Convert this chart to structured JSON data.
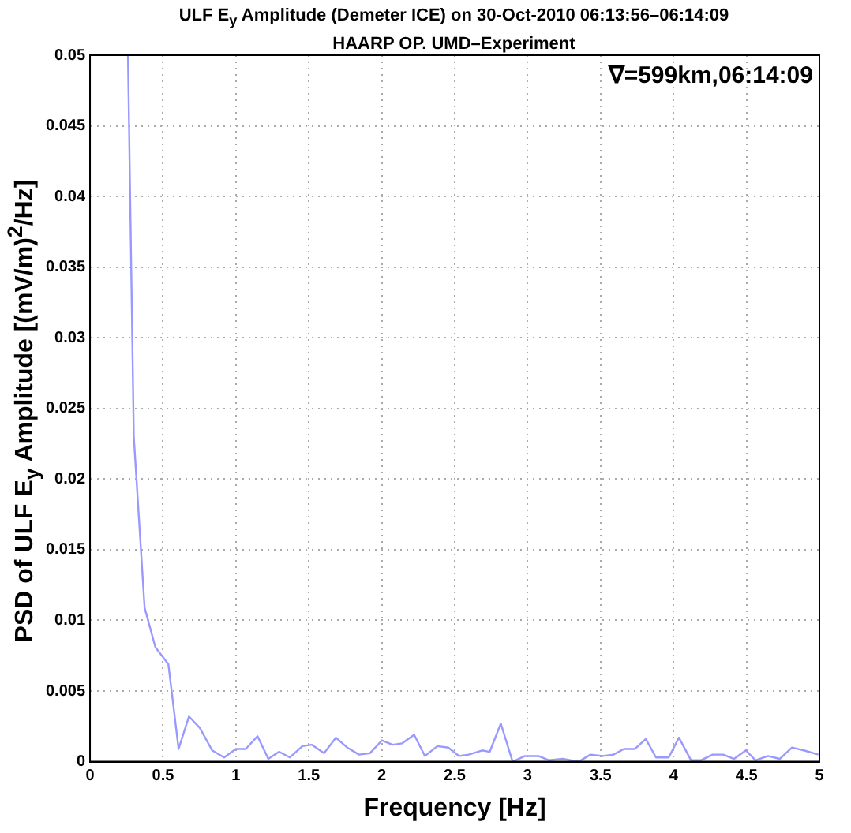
{
  "chart_data": {
    "type": "line",
    "title": "ULF E$_{y}$ Amplitude (Demeter ICE) on 30-Oct-2010 06:13:56–06:14:09",
    "subtitle": "HAARP OP. UMD–Experiment",
    "xlabel": "Frequency [Hz]",
    "ylabel": "PSD of ULF E$_{y}$ Amplitude [(mV/m)$^{2}$/Hz]",
    "annotations": [
      "∇=599km,06:14:09"
    ],
    "x": [
      0.26,
      0.3,
      0.374,
      0.448,
      0.537,
      0.607,
      0.678,
      0.752,
      0.837,
      0.919,
      1.0,
      1.067,
      1.148,
      1.222,
      1.296,
      1.37,
      1.456,
      1.519,
      1.604,
      1.685,
      1.763,
      1.844,
      1.919,
      2.0,
      2.074,
      2.14,
      2.222,
      2.296,
      2.381,
      2.456,
      2.53,
      2.596,
      2.688,
      2.74,
      2.816,
      2.897,
      2.982,
      3.074,
      3.147,
      3.24,
      3.35,
      3.43,
      3.515,
      3.588,
      3.66,
      3.735,
      3.81,
      3.88,
      3.967,
      4.037,
      4.12,
      4.187,
      4.268,
      4.34,
      4.415,
      4.496,
      4.562,
      4.647,
      4.728,
      4.812,
      4.893,
      4.993
    ],
    "values": [
      0.05,
      0.023,
      0.0109,
      0.0081,
      0.0069,
      0.0009,
      0.0032,
      0.0024,
      0.0008,
      0.0003,
      0.0009,
      0.0009,
      0.0018,
      0.0002,
      0.0007,
      0.0003,
      0.0011,
      0.0012,
      0.0006,
      0.0017,
      0.001,
      0.0005,
      0.0006,
      0.0015,
      0.0012,
      0.0013,
      0.0019,
      0.0004,
      0.0011,
      0.001,
      0.0004,
      0.0005,
      0.0008,
      0.0007,
      0.0027,
      0.0,
      0.0004,
      0.0004,
      0.0001,
      0.0002,
      0.0,
      0.0005,
      0.0004,
      0.0005,
      0.0009,
      0.0009,
      0.0016,
      0.0003,
      0.0003,
      0.0017,
      0.0001,
      0.0001,
      0.0005,
      0.0005,
      0.0002,
      0.0008,
      0.0001,
      0.0004,
      0.0002,
      0.001,
      0.0008,
      0.0005
    ],
    "color": "#9999ff",
    "xlim": [
      0,
      5
    ],
    "xticks": [
      0,
      0.5,
      1,
      1.5,
      2,
      2.5,
      3,
      3.5,
      4,
      4.5,
      5
    ],
    "ylim": [
      0,
      0.05
    ],
    "yticks": [
      0,
      0.005,
      0.01,
      0.015,
      0.02,
      0.025,
      0.03,
      0.035,
      0.04,
      0.045,
      0.05
    ],
    "grid": true,
    "marker": "none",
    "line_style": "solid"
  }
}
